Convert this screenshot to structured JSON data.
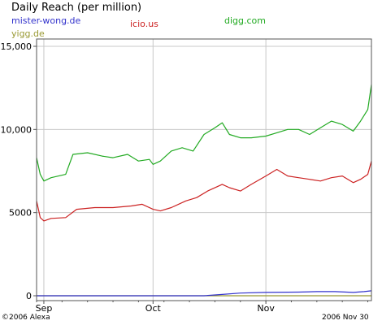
{
  "chart_data": {
    "type": "line",
    "title": "Daily Reach (per million)",
    "xlabel": "",
    "ylabel": "",
    "x_ticks": [
      "Sep",
      "Oct",
      "Nov"
    ],
    "y_ticks": [
      "15,000",
      "10,000",
      "5000",
      "0"
    ],
    "ylim": [
      0,
      15000
    ],
    "x_start": "2006-08-30",
    "x_end": "2006-11-30",
    "grid": true,
    "legend_position": "top",
    "series": [
      {
        "name": "mister-wong.de",
        "color": "#3333cc",
        "points": [
          [
            "2006-08-30",
            0
          ],
          [
            "2006-09-15",
            0
          ],
          [
            "2006-10-01",
            0
          ],
          [
            "2006-10-15",
            0
          ],
          [
            "2006-10-20",
            80
          ],
          [
            "2006-10-25",
            160
          ],
          [
            "2006-11-01",
            200
          ],
          [
            "2006-11-10",
            220
          ],
          [
            "2006-11-15",
            250
          ],
          [
            "2006-11-20",
            250
          ],
          [
            "2006-11-25",
            200
          ],
          [
            "2006-11-28",
            250
          ],
          [
            "2006-11-30",
            300
          ]
        ]
      },
      {
        "name": "icio.us",
        "color": "#cc2222",
        "points": [
          [
            "2006-08-30",
            5700
          ],
          [
            "2006-08-31",
            4700
          ],
          [
            "2006-09-01",
            4500
          ],
          [
            "2006-09-03",
            4650
          ],
          [
            "2006-09-07",
            4700
          ],
          [
            "2006-09-10",
            5200
          ],
          [
            "2006-09-15",
            5300
          ],
          [
            "2006-09-20",
            5300
          ],
          [
            "2006-09-25",
            5400
          ],
          [
            "2006-09-28",
            5500
          ],
          [
            "2006-10-01",
            5200
          ],
          [
            "2006-10-03",
            5100
          ],
          [
            "2006-10-06",
            5300
          ],
          [
            "2006-10-10",
            5700
          ],
          [
            "2006-10-13",
            5900
          ],
          [
            "2006-10-16",
            6300
          ],
          [
            "2006-10-20",
            6700
          ],
          [
            "2006-10-22",
            6500
          ],
          [
            "2006-10-25",
            6300
          ],
          [
            "2006-10-28",
            6700
          ],
          [
            "2006-11-01",
            7200
          ],
          [
            "2006-11-04",
            7600
          ],
          [
            "2006-11-07",
            7200
          ],
          [
            "2006-11-10",
            7100
          ],
          [
            "2006-11-13",
            7000
          ],
          [
            "2006-11-16",
            6900
          ],
          [
            "2006-11-19",
            7100
          ],
          [
            "2006-11-22",
            7200
          ],
          [
            "2006-11-25",
            6800
          ],
          [
            "2006-11-27",
            7000
          ],
          [
            "2006-11-29",
            7300
          ],
          [
            "2006-11-30",
            8100
          ]
        ]
      },
      {
        "name": "digg.com",
        "color": "#22aa22",
        "points": [
          [
            "2006-08-30",
            8300
          ],
          [
            "2006-08-31",
            7300
          ],
          [
            "2006-09-01",
            6900
          ],
          [
            "2006-09-03",
            7100
          ],
          [
            "2006-09-07",
            7300
          ],
          [
            "2006-09-09",
            8500
          ],
          [
            "2006-09-13",
            8600
          ],
          [
            "2006-09-17",
            8400
          ],
          [
            "2006-09-20",
            8300
          ],
          [
            "2006-09-24",
            8500
          ],
          [
            "2006-09-27",
            8100
          ],
          [
            "2006-09-30",
            8200
          ],
          [
            "2006-10-01",
            7900
          ],
          [
            "2006-10-03",
            8100
          ],
          [
            "2006-10-06",
            8700
          ],
          [
            "2006-10-09",
            8900
          ],
          [
            "2006-10-12",
            8700
          ],
          [
            "2006-10-15",
            9700
          ],
          [
            "2006-10-18",
            10100
          ],
          [
            "2006-10-20",
            10400
          ],
          [
            "2006-10-22",
            9700
          ],
          [
            "2006-10-25",
            9500
          ],
          [
            "2006-10-28",
            9500
          ],
          [
            "2006-11-01",
            9600
          ],
          [
            "2006-11-04",
            9800
          ],
          [
            "2006-11-07",
            10000
          ],
          [
            "2006-11-10",
            10000
          ],
          [
            "2006-11-13",
            9700
          ],
          [
            "2006-11-16",
            10100
          ],
          [
            "2006-11-19",
            10500
          ],
          [
            "2006-11-22",
            10300
          ],
          [
            "2006-11-25",
            9900
          ],
          [
            "2006-11-27",
            10500
          ],
          [
            "2006-11-29",
            11200
          ],
          [
            "2006-11-30",
            12700
          ]
        ]
      },
      {
        "name": "yigg.de",
        "color": "#999933",
        "points": [
          [
            "2006-08-30",
            0
          ],
          [
            "2006-09-15",
            0
          ],
          [
            "2006-10-01",
            0
          ],
          [
            "2006-10-15",
            0
          ],
          [
            "2006-11-01",
            0
          ],
          [
            "2006-11-15",
            0
          ],
          [
            "2006-11-30",
            0
          ]
        ]
      }
    ]
  },
  "footer": {
    "copyright": "©2006 Alexa",
    "date": "2006 Nov 30"
  }
}
